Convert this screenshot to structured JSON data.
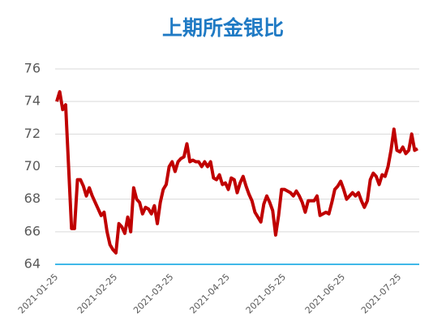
{
  "chart_data": {
    "type": "line",
    "title": "上期所金银比",
    "categories": [
      "2021-01-25",
      null,
      null,
      null,
      null,
      null,
      null,
      null,
      null,
      null,
      null,
      null,
      null,
      null,
      null,
      null,
      null,
      null,
      null,
      null,
      "2021-02-25",
      null,
      null,
      null,
      null,
      null,
      null,
      null,
      null,
      null,
      null,
      null,
      null,
      null,
      null,
      null,
      null,
      null,
      null,
      "2021-03-25",
      null,
      null,
      null,
      null,
      null,
      null,
      null,
      null,
      null,
      null,
      null,
      null,
      null,
      null,
      null,
      null,
      null,
      null,
      "2021-04-25",
      null,
      null,
      null,
      null,
      null,
      null,
      null,
      null,
      null,
      null,
      null,
      null,
      null,
      null,
      null,
      null,
      null,
      null,
      "2021-05-25",
      null,
      null,
      null,
      null,
      null,
      null,
      null,
      null,
      null,
      null,
      null,
      null,
      null,
      null,
      null,
      null,
      null,
      null,
      null,
      "2021-06-25",
      null,
      null,
      null,
      null,
      null,
      null,
      null,
      null,
      null,
      null,
      null,
      null,
      null,
      null,
      null,
      null,
      null,
      null,
      "2021-07-25",
      null,
      null,
      null,
      null,
      null,
      null
    ],
    "values": [
      74.0,
      74.6,
      73.5,
      73.8,
      70.0,
      66.2,
      66.2,
      69.2,
      69.2,
      68.8,
      68.2,
      68.7,
      68.2,
      67.8,
      67.4,
      67.0,
      67.2,
      66.0,
      65.2,
      64.9,
      64.7,
      66.5,
      66.3,
      65.9,
      66.9,
      66.0,
      68.7,
      68.0,
      67.8,
      67.1,
      67.5,
      67.4,
      67.1,
      67.6,
      66.5,
      67.8,
      68.6,
      68.9,
      70.0,
      70.3,
      69.7,
      70.3,
      70.5,
      70.6,
      71.4,
      70.3,
      70.4,
      70.3,
      70.3,
      70.0,
      70.3,
      70.0,
      70.3,
      69.3,
      69.2,
      69.5,
      68.9,
      69.0,
      68.6,
      69.3,
      69.2,
      68.4,
      69.0,
      69.4,
      68.8,
      68.3,
      67.9,
      67.2,
      66.9,
      66.6,
      67.7,
      68.2,
      67.8,
      67.3,
      65.8,
      67.0,
      68.6,
      68.6,
      68.5,
      68.4,
      68.2,
      68.5,
      68.2,
      67.8,
      67.2,
      67.9,
      67.9,
      67.9,
      68.2,
      67.0,
      67.1,
      67.2,
      67.1,
      67.8,
      68.6,
      68.8,
      69.1,
      68.6,
      68.0,
      68.2,
      68.4,
      68.2,
      68.4,
      67.9,
      67.5,
      67.9,
      69.2,
      69.6,
      69.4,
      68.9,
      69.5,
      69.4,
      70.0,
      71.0,
      72.3,
      71.0,
      70.9,
      71.2,
      70.8,
      71.0,
      72.0,
      71.0,
      71.1
    ],
    "color": "#c00000",
    "ylim": [
      64,
      76
    ],
    "yticks": [
      64,
      66,
      68,
      70,
      72,
      74,
      76
    ],
    "grid": true
  }
}
